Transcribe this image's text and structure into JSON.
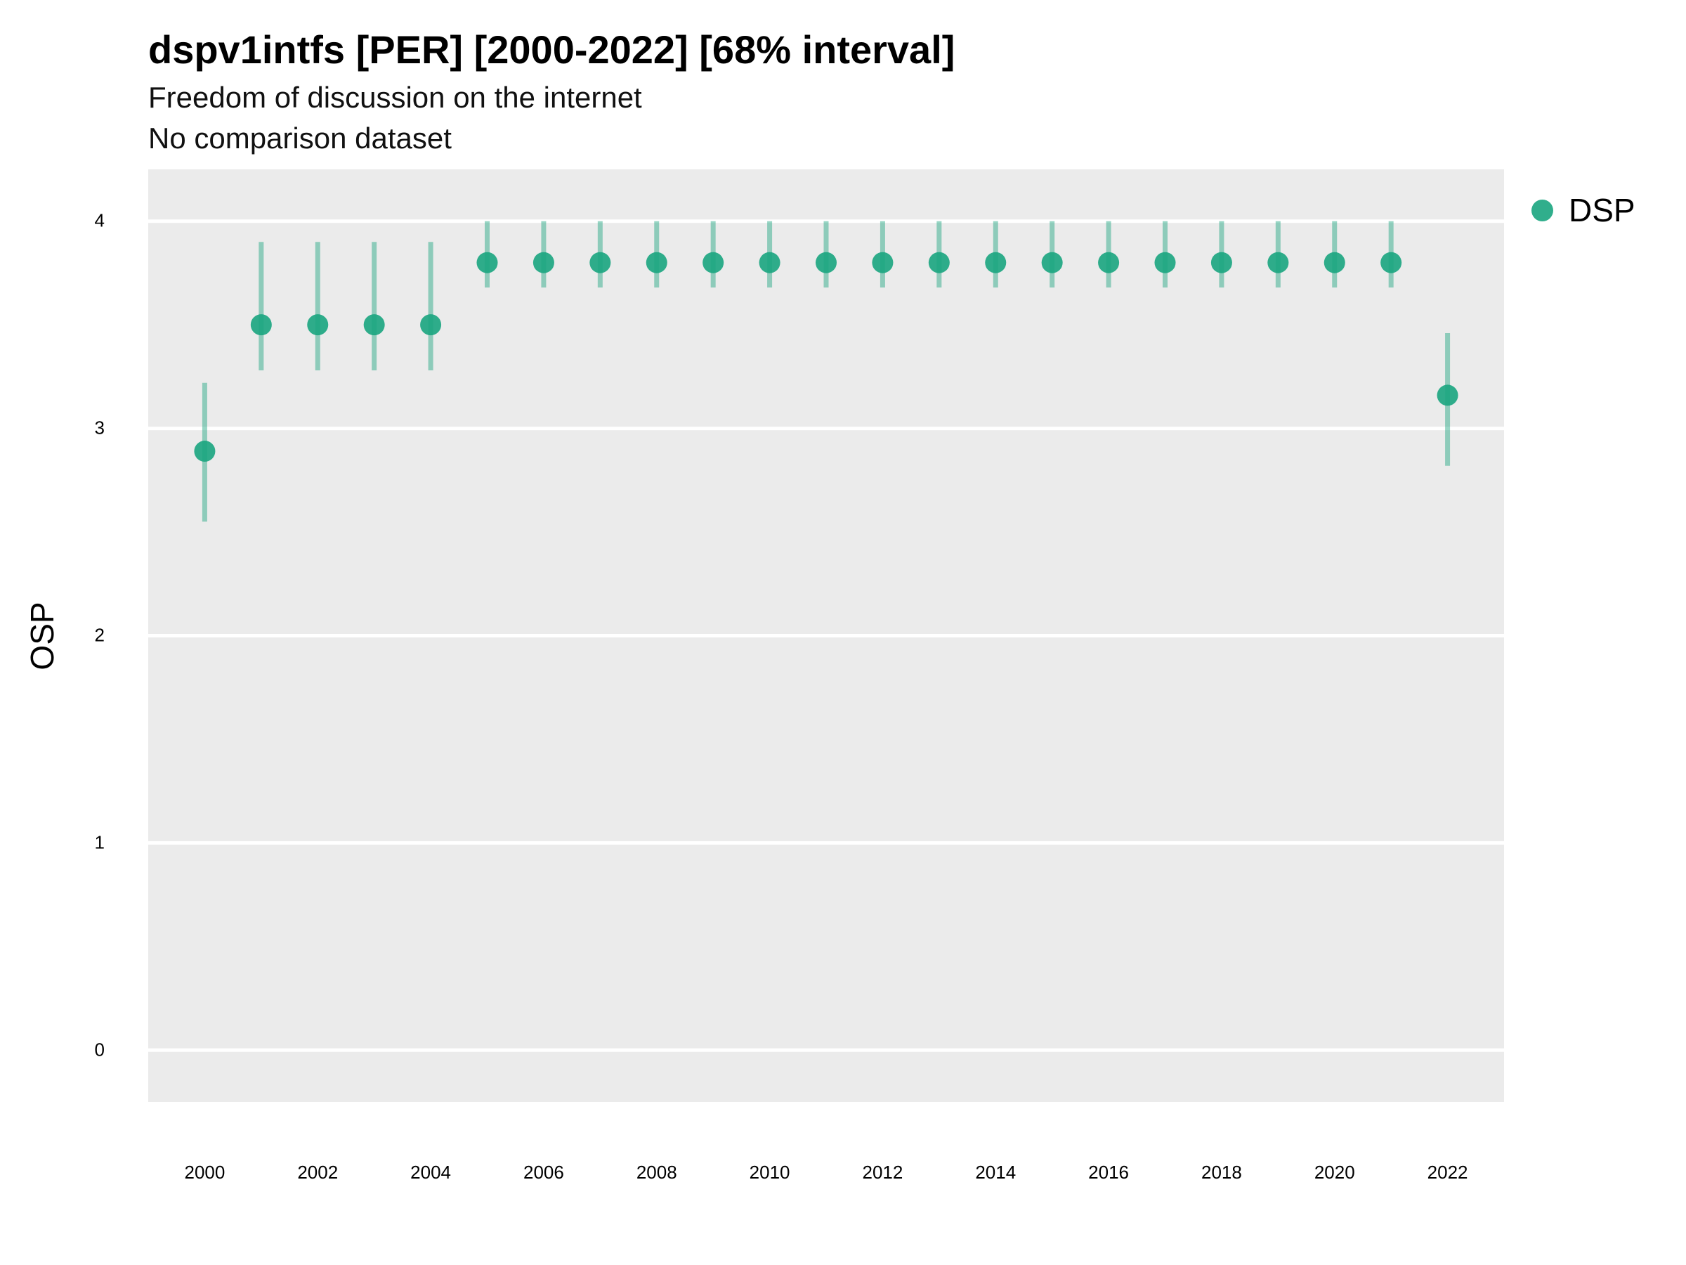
{
  "chart_data": {
    "type": "scatter",
    "title": "dspv1intfs [PER] [2000-2022] [68% interval]",
    "subtitle": [
      "Freedom of discussion on the internet",
      "No comparison dataset"
    ],
    "xlabel": "",
    "ylabel": "OSP",
    "xlim": [
      1999,
      2023
    ],
    "ylim": [
      -0.25,
      4.25
    ],
    "x_ticks": [
      "2000",
      "2002",
      "2004",
      "2006",
      "2008",
      "2010",
      "2012",
      "2014",
      "2016",
      "2018",
      "2020",
      "2022"
    ],
    "y_ticks": [
      "0",
      "1",
      "2",
      "3",
      "4"
    ],
    "grid": true,
    "legend_position": "right-top",
    "series": [
      {
        "name": "DSP",
        "color": "#1aa57f",
        "x": [
          2000,
          2001,
          2002,
          2003,
          2004,
          2005,
          2006,
          2007,
          2008,
          2009,
          2010,
          2011,
          2012,
          2013,
          2014,
          2015,
          2016,
          2017,
          2018,
          2019,
          2020,
          2021,
          2022
        ],
        "y": [
          2.89,
          3.5,
          3.5,
          3.5,
          3.5,
          3.8,
          3.8,
          3.8,
          3.8,
          3.8,
          3.8,
          3.8,
          3.8,
          3.8,
          3.8,
          3.8,
          3.8,
          3.8,
          3.8,
          3.8,
          3.8,
          3.8,
          3.16
        ],
        "lower": [
          2.55,
          3.28,
          3.28,
          3.28,
          3.28,
          3.68,
          3.68,
          3.68,
          3.68,
          3.68,
          3.68,
          3.68,
          3.68,
          3.68,
          3.68,
          3.68,
          3.68,
          3.68,
          3.68,
          3.68,
          3.68,
          3.68,
          2.82
        ],
        "upper": [
          3.22,
          3.9,
          3.9,
          3.9,
          3.9,
          4.0,
          4.0,
          4.0,
          4.0,
          4.0,
          4.0,
          4.0,
          4.0,
          4.0,
          4.0,
          4.0,
          4.0,
          4.0,
          4.0,
          4.0,
          4.0,
          4.0,
          3.46
        ]
      }
    ]
  }
}
